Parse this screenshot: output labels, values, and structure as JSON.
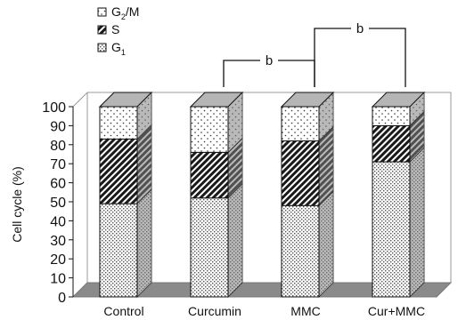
{
  "chart_data": {
    "type": "bar",
    "stacked": true,
    "style": "3d",
    "categories": [
      "Control",
      "Curcumin",
      "MMC",
      "Cur+MMC"
    ],
    "series": [
      {
        "name": "G1",
        "name_main": "G",
        "name_sub": "1",
        "pattern": "crosshatch",
        "values": [
          49,
          52,
          48,
          71
        ]
      },
      {
        "name": "S",
        "pattern": "diagonal-stripes",
        "values": [
          34,
          24,
          34,
          19
        ]
      },
      {
        "name": "G2/M",
        "name_main": "G",
        "name_sub": "2",
        "name_tail": "/M",
        "pattern": "dots",
        "values": [
          17,
          24,
          18,
          10
        ]
      }
    ],
    "ylabel": "Cell cycle (%)",
    "ylim": [
      0,
      100
    ],
    "yticks": [
      0,
      10,
      20,
      30,
      40,
      50,
      60,
      70,
      80,
      90,
      100
    ],
    "legend_position": "top-left",
    "grid": false,
    "significance": [
      {
        "from": "Curcumin",
        "to": "MMC",
        "label": "b"
      },
      {
        "from": "MMC",
        "to": "Cur+MMC",
        "label": "b"
      }
    ]
  },
  "colors": {
    "floor": "#8a8a8a",
    "wall_line": "#9a9a9a",
    "bar_side": "#7f7f7f",
    "bar_top": "#b5b5b5",
    "ink": "#111111"
  }
}
